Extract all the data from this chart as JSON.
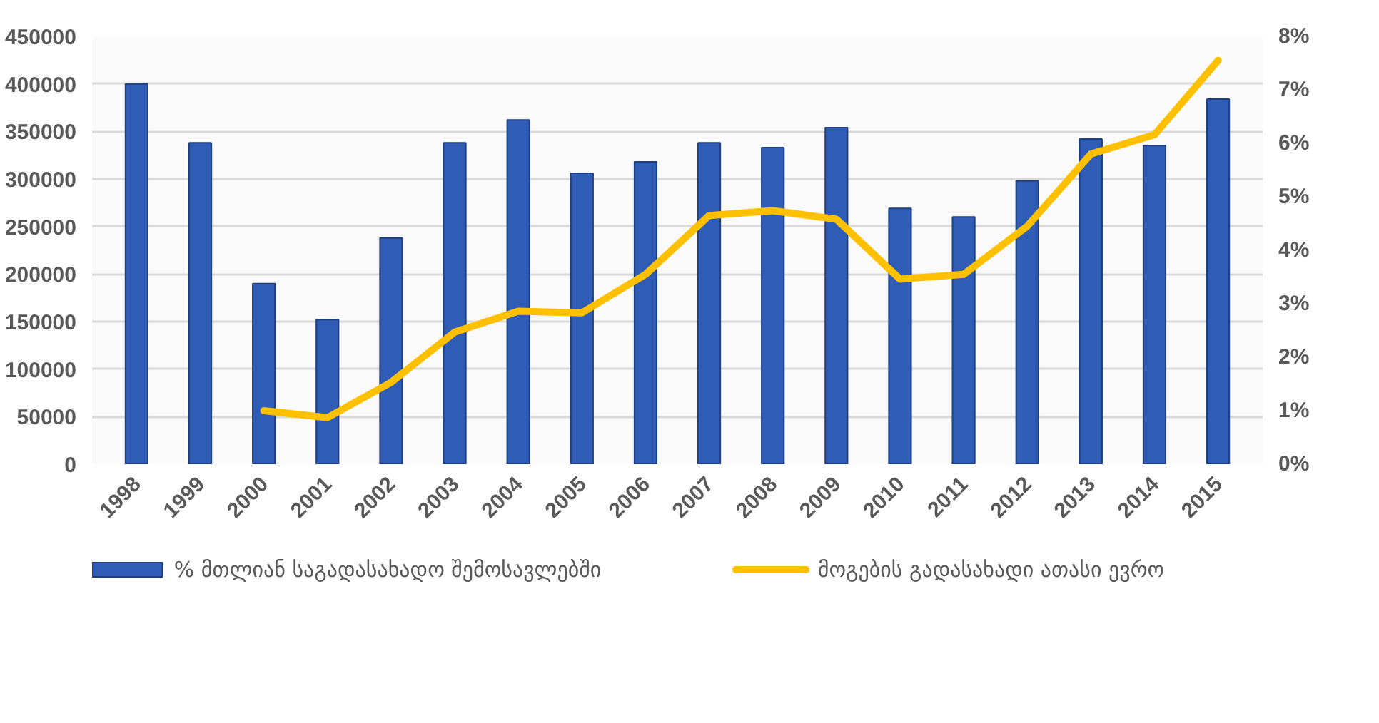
{
  "chart_data": {
    "type": "bar",
    "categories": [
      "1998",
      "1999",
      "2000",
      "2001",
      "2002",
      "2003",
      "2004",
      "2005",
      "2006",
      "2007",
      "2008",
      "2009",
      "2010",
      "2011",
      "2012",
      "2013",
      "2014",
      "2015"
    ],
    "series": [
      {
        "name": "% მთლიან საგადასახადო შემოსავლებში",
        "color": "#2f5db5",
        "values": [
          400000,
          338000,
          190000,
          152000,
          238000,
          338000,
          362000,
          306000,
          318000,
          338000,
          333000,
          354000,
          269000,
          260000,
          298000,
          342000,
          335000,
          384000
        ]
      },
      {
        "name": "მოგების გადასახადი ათასი ევრო",
        "type": "line",
        "axis": "y2",
        "color": "#ffc000",
        "values": [
          null,
          null,
          1.0,
          0.87,
          1.53,
          2.47,
          2.86,
          2.83,
          3.55,
          4.65,
          4.74,
          4.58,
          3.46,
          3.55,
          4.45,
          5.8,
          6.16,
          7.55
        ]
      }
    ],
    "ylim": [
      0,
      450000
    ],
    "yticks": [
      0,
      50000,
      100000,
      150000,
      200000,
      250000,
      300000,
      350000,
      400000,
      450000
    ],
    "y2lim": [
      0,
      8
    ],
    "y2ticks": [
      {
        "value": 0,
        "label": "0%"
      },
      {
        "value": 1,
        "label": "1%"
      },
      {
        "value": 2,
        "label": "2%"
      },
      {
        "value": 3,
        "label": "3%"
      },
      {
        "value": 4,
        "label": "4%"
      },
      {
        "value": 5,
        "label": "5%"
      },
      {
        "value": 6,
        "label": "6%"
      },
      {
        "value": 7,
        "label": "7%"
      },
      {
        "value": 8,
        "label": "8%"
      }
    ],
    "grid": "y",
    "legend": "bottom",
    "marker": "none",
    "line_style": "solid"
  }
}
